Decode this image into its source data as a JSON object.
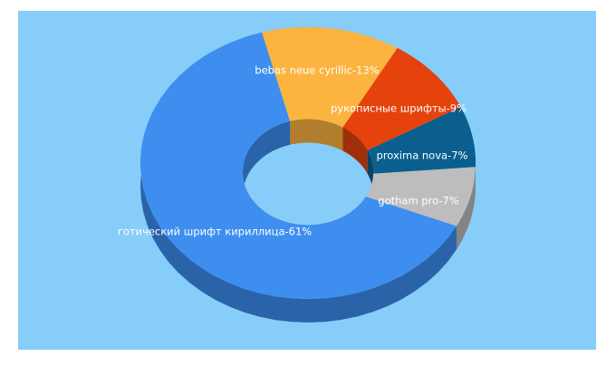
{
  "chart_data": {
    "type": "donut3d",
    "categories": [
      "bebas neue cyrillic-13%",
      "рукописные шрифты-9%",
      "proxima nova-7%",
      "gotham pro-7%",
      "готический шрифт кириллица-61%"
    ],
    "values": [
      13,
      9,
      7,
      7,
      61
    ],
    "colors": [
      "#fbb440",
      "#e5420c",
      "#0a5f8e",
      "#bdbdbd",
      "#3e8ef0"
    ]
  }
}
